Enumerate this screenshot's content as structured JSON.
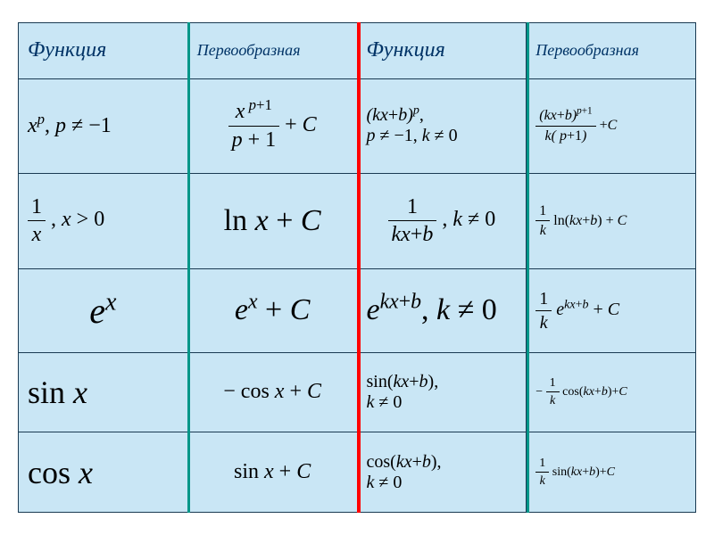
{
  "table": {
    "background_color": "#c9e6f5",
    "border_color": "#1a3a52",
    "header_text_color": "#003366",
    "separator_colors": {
      "teal": "#009688",
      "red": "#ff0000"
    },
    "headers": {
      "c1": "Функция",
      "c2": "Первообразная",
      "c3": "Функция",
      "c4": "Первообразная"
    },
    "rows": [
      {
        "c1": "x^p, p ≠ -1",
        "c2": "x^{p+1}/(p+1) + C",
        "c3": "(kx+b)^p, p ≠ -1, k ≠ 0",
        "c4": "(kx+b)^{p+1} / (k(p+1)) + C"
      },
      {
        "c1": "1/x, x > 0",
        "c2": "ln x + C",
        "c3": "1/(kx+b), k ≠ 0",
        "c4": "(1/k) ln(kx+b) + C"
      },
      {
        "c1": "e^x",
        "c2": "e^x + C",
        "c3": "e^{kx+b}, k ≠ 0",
        "c4": "(1/k) e^{kx+b} + C"
      },
      {
        "c1": "sin x",
        "c2": "-cos x + C",
        "c3": "sin(kx+b), k ≠ 0",
        "c4": "-(1/k) cos(kx+b) + C"
      },
      {
        "c1": "cos x",
        "c2": "sin x + C",
        "c3": "cos(kx+b), k ≠ 0",
        "c4": "(1/k) sin(kx+b) + C"
      }
    ]
  }
}
